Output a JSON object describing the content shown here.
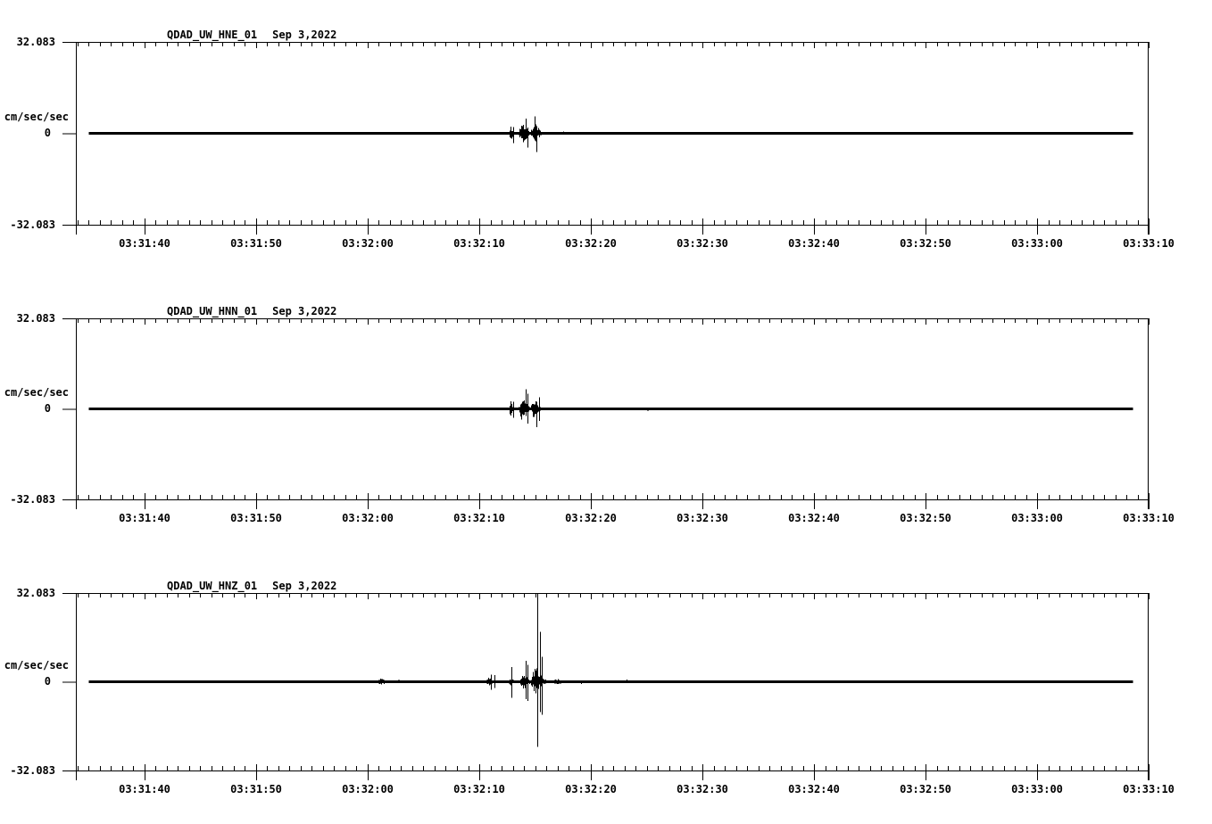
{
  "window": {
    "background": "#ffffff",
    "foreground": "#000000"
  },
  "chart_data": {
    "type": "line",
    "subtype": "seismogram-3-component",
    "station": "QDAD",
    "network": "UW",
    "location": "01",
    "date": "Sep 3,2022",
    "units": "cm/sec/sec",
    "y_axis": {
      "max": 32.083,
      "min": -32.083,
      "tick_labels": [
        "32.083",
        "0",
        "-32.083"
      ],
      "label": "cm/sec/sec"
    },
    "time_axis": {
      "time_reference": "seconds after 03:31:00",
      "window_start_sec": 33.84,
      "window_end_sec": 130,
      "major_tick_interval_sec": 10,
      "minor_tick_interval_sec": 1,
      "tick_seconds": [
        40,
        50,
        60,
        70,
        80,
        90,
        100,
        110,
        120,
        130
      ],
      "labels": [
        "03:31:40",
        "03:31:50",
        "03:32:00",
        "03:32:10",
        "03:32:20",
        "03:32:30",
        "03:32:40",
        "03:32:50",
        "03:33:00",
        "03:33:10"
      ]
    },
    "panels": [
      {
        "title": "QDAD_UW_HNE_01",
        "date_label": "Sep 3,2022",
        "channel": "HNE",
        "ylabel": "cm/sec/sec",
        "y_top_label": "32.083",
        "y_zero_label": "0",
        "y_bottom_label": "-32.083",
        "trace": {
          "baseline_value": 0,
          "start_sec": 35.0,
          "end_sec": 128.6,
          "bursts": [
            {
              "t": 61.5,
              "w": 1.0,
              "up": 0.6
            },
            {
              "t": 62.9,
              "w": 0.35,
              "up": 0.45
            },
            {
              "t": 71.3,
              "w": 0.3,
              "up": 0.5
            },
            {
              "t": 72.95,
              "w": 0.6,
              "up": 2.9,
              "dn": 3.1,
              "decay": 2.0
            },
            {
              "t": 74.15,
              "w": 1.2,
              "up": 3.9,
              "dn": 3.9
            },
            {
              "t": 75.35,
              "w": 1.6,
              "up": 3.7,
              "dn": 3.7,
              "decay": 2.2
            },
            {
              "t": 77.6,
              "w": 0.35,
              "up": 0.6
            },
            {
              "t": 83.3,
              "w": 0.3,
              "up": 0.5
            }
          ],
          "spikes": [
            {
              "t": 73.0,
              "up": 2.2,
              "dn": 3.4
            },
            {
              "t": 74.15,
              "up": 5.2,
              "dn": 2.0
            },
            {
              "t": 74.3,
              "up": 2.0,
              "dn": 5.0
            },
            {
              "t": 74.97,
              "up": 6.0,
              "dn": 2.5
            },
            {
              "t": 75.1,
              "up": 2.5,
              "dn": 6.6
            }
          ]
        }
      },
      {
        "title": "QDAD_UW_HNN_01",
        "date_label": "Sep 3,2022",
        "channel": "HNN",
        "ylabel": "cm/sec/sec",
        "y_top_label": "32.083",
        "y_zero_label": "0",
        "y_bottom_label": "-32.083",
        "trace": {
          "baseline_value": 0,
          "start_sec": 35.0,
          "end_sec": 128.6,
          "bursts": [
            {
              "t": 68.5,
              "w": 0.3,
              "up": 0.45
            },
            {
              "t": 71.2,
              "w": 0.6,
              "up": 0.7
            },
            {
              "t": 72.95,
              "w": 0.6,
              "up": 3.0,
              "dn": 3.2,
              "decay": 2.0
            },
            {
              "t": 74.1,
              "w": 1.2,
              "up": 4.2,
              "dn": 4.2
            },
            {
              "t": 75.35,
              "w": 1.5,
              "up": 4.0,
              "dn": 4.0,
              "decay": 2.2
            },
            {
              "t": 77.9,
              "w": 0.4,
              "up": 0.6
            },
            {
              "t": 79.0,
              "w": 0.3,
              "up": 0.4
            },
            {
              "t": 85.2,
              "w": 0.6,
              "up": 0.8
            }
          ],
          "spikes": [
            {
              "t": 73.0,
              "up": 2.5,
              "dn": 3.2
            },
            {
              "t": 74.15,
              "up": 7.0,
              "dn": 2.5
            },
            {
              "t": 74.3,
              "up": 5.3,
              "dn": 5.2
            },
            {
              "t": 75.1,
              "up": 2.5,
              "dn": 6.5
            },
            {
              "t": 75.35,
              "up": 4.1,
              "dn": 4.3
            }
          ]
        }
      },
      {
        "title": "QDAD_UW_HNZ_01",
        "date_label": "Sep 3,2022",
        "channel": "HNZ",
        "ylabel": "cm/sec/sec",
        "y_top_label": "32.083",
        "y_zero_label": "0",
        "y_bottom_label": "-32.083",
        "trace": {
          "baseline_value": 0,
          "start_sec": 35.0,
          "end_sec": 128.6,
          "bursts": [
            {
              "t": 61.7,
              "w": 1.9,
              "up": 1.1,
              "dn": 1.1
            },
            {
              "t": 62.9,
              "w": 0.7,
              "up": 0.8
            },
            {
              "t": 64.0,
              "w": 0.25,
              "up": 0.5
            },
            {
              "t": 67.1,
              "w": 0.4,
              "up": 0.6
            },
            {
              "t": 67.9,
              "w": 0.3,
              "up": 0.6
            },
            {
              "t": 71.1,
              "w": 1.0,
              "up": 1.5,
              "dn": 1.5
            },
            {
              "t": 72.95,
              "w": 0.8,
              "up": 1.5,
              "dn": 1.5
            },
            {
              "t": 74.25,
              "w": 1.3,
              "up": 2.9,
              "dn": 2.9
            },
            {
              "t": 75.55,
              "w": 1.9,
              "up": 5.5,
              "dn": 4.5,
              "decay": 2.0
            },
            {
              "t": 77.4,
              "w": 1.8,
              "up": 1.0,
              "dn": 1.0,
              "decay": 1.5
            },
            {
              "t": 79.2,
              "w": 0.4,
              "up": 0.9
            },
            {
              "t": 83.2,
              "w": 0.4,
              "up": 1.3
            },
            {
              "t": 86.6,
              "w": 0.3,
              "up": 0.5
            },
            {
              "t": 88.0,
              "w": 0.3,
              "up": 0.5
            }
          ],
          "spikes": [
            {
              "t": 71.0,
              "up": 2.6,
              "dn": 2.9
            },
            {
              "t": 71.35,
              "up": 2.4,
              "dn": 2.2
            },
            {
              "t": 72.9,
              "up": 5.4,
              "dn": 5.8
            },
            {
              "t": 74.15,
              "up": 7.5,
              "dn": 6.3
            },
            {
              "t": 74.35,
              "up": 6.2,
              "dn": 7.0
            },
            {
              "t": 75.2,
              "up": 32.0,
              "dn": 23.5
            },
            {
              "t": 75.45,
              "up": 18.0,
              "dn": 11.0
            },
            {
              "t": 75.6,
              "up": 9.0,
              "dn": 12.0
            }
          ]
        }
      }
    ]
  }
}
